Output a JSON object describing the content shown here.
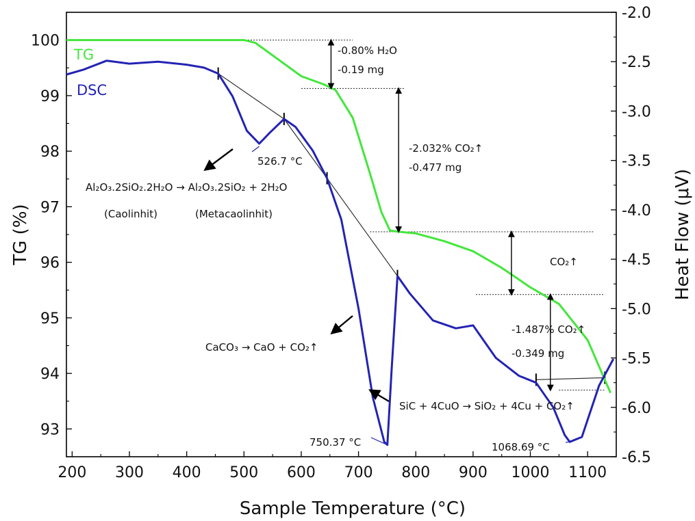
{
  "chart_data": {
    "type": "line",
    "xlabel": "Sample Temperature (°C)",
    "ylabel_left": "TG (%)",
    "ylabel_right": "Heat Flow (μV)",
    "xlim": [
      190,
      1150
    ],
    "ylim_left": [
      92.5,
      100.5
    ],
    "ylim_right": [
      -6.5,
      -2.0
    ],
    "xticks": [
      "200",
      "300",
      "400",
      "500",
      "600",
      "700",
      "800",
      "900",
      "1000",
      "1100"
    ],
    "yticks_left": [
      "93",
      "94",
      "95",
      "96",
      "97",
      "98",
      "99",
      "100"
    ],
    "yticks_right": [
      "-6.5",
      "-6.0",
      "-5.5",
      "-5.0",
      "-4.5",
      "-4.0",
      "-3.5",
      "-3.0",
      "-2.5",
      "-2.0"
    ],
    "colors": {
      "tg": "#44e63c",
      "dsc": "#2323b4"
    },
    "series": [
      {
        "name": "TG",
        "axis": "left",
        "color": "#44e63c",
        "x": [
          190,
          300,
          400,
          500,
          520,
          560,
          600,
          640,
          660,
          690,
          720,
          740,
          755,
          770,
          800,
          850,
          900,
          950,
          1000,
          1050,
          1100,
          1140
        ],
        "y": [
          100.0,
          100.0,
          100.0,
          100.0,
          99.95,
          99.65,
          99.35,
          99.2,
          99.1,
          98.6,
          97.6,
          96.9,
          96.57,
          96.55,
          96.52,
          96.38,
          96.2,
          95.9,
          95.55,
          95.25,
          94.6,
          93.65
        ]
      },
      {
        "name": "DSC",
        "axis": "right",
        "color": "#2323b4",
        "x": [
          190,
          220,
          260,
          300,
          350,
          400,
          430,
          455,
          480,
          505,
          526.7,
          545,
          570,
          590,
          620,
          645,
          670,
          700,
          725,
          745,
          750.37,
          758,
          768,
          790,
          830,
          870,
          900,
          940,
          980,
          1010,
          1040,
          1060,
          1068.69,
          1090,
          1120,
          1145
        ],
        "y": [
          -2.63,
          -2.58,
          -2.49,
          -2.52,
          -2.5,
          -2.53,
          -2.56,
          -2.62,
          -2.85,
          -3.2,
          -3.33,
          -3.22,
          -3.08,
          -3.16,
          -3.4,
          -3.68,
          -4.1,
          -5.0,
          -5.9,
          -6.35,
          -6.38,
          -5.6,
          -4.67,
          -4.85,
          -5.12,
          -5.2,
          -5.17,
          -5.5,
          -5.68,
          -5.75,
          -6.0,
          -6.28,
          -6.35,
          -6.3,
          -5.78,
          -5.51
        ]
      }
    ],
    "annotations": [
      {
        "id": "h2o",
        "line1": "-0.80% H₂O",
        "line2": "-0.19 mg"
      },
      {
        "id": "co2a",
        "line1": "-2.032% CO₂↑",
        "line2": "-0.477 mg"
      },
      {
        "id": "co2b",
        "line1": "CO₂↑"
      },
      {
        "id": "co2c",
        "line1": "-1.487% CO₂↑",
        "line2": "-0.349 mg"
      },
      {
        "id": "peak1",
        "text": "526.7 °C"
      },
      {
        "id": "peak2",
        "text": "750.37 °C"
      },
      {
        "id": "peak3",
        "text": "1068.69 °C"
      },
      {
        "id": "reaction1",
        "text": "Al₂O₃.2SiO₂.2H₂O → Al₂O₃.2SiO₂ + 2H₂O"
      },
      {
        "id": "reaction1_labels",
        "left": "(Caolinhit)",
        "right": "(Metacaolinhit)"
      },
      {
        "id": "reaction2",
        "text": "CaCO₃ → CaO + CO₂↑"
      },
      {
        "id": "reaction3",
        "text": "SiC + 4CuO → SiO₂ + 4Cu + CO₂↑"
      }
    ]
  }
}
